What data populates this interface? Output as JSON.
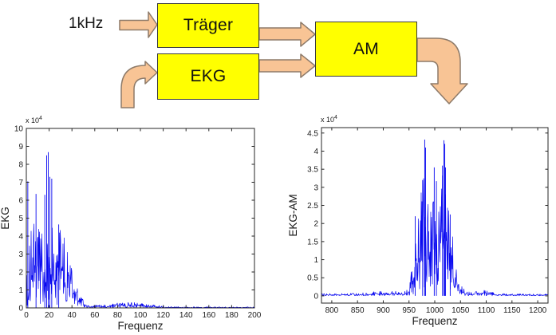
{
  "diagram": {
    "input_label": "1kHz",
    "blocks": [
      {
        "id": "traeger",
        "label": "Träger"
      },
      {
        "id": "ekg",
        "label": "EKG"
      },
      {
        "id": "am",
        "label": "AM"
      }
    ],
    "colors": {
      "block_fill": "#ffff00",
      "block_border": "#3a3a3a",
      "arrow_fill": "#f8c495",
      "arrow_border": "#8d7a69"
    }
  },
  "chart_data": [
    {
      "type": "line",
      "title": "",
      "xlabel": "Frequenz",
      "ylabel": "EKG",
      "exponent_label": "x 10^4",
      "xlim": [
        0,
        200
      ],
      "ylim": [
        0,
        10
      ],
      "xticks": [
        0,
        20,
        40,
        60,
        80,
        100,
        120,
        140,
        160,
        180,
        200
      ],
      "yticks": [
        0,
        1,
        2,
        3,
        4,
        5,
        6,
        7,
        8,
        9,
        10
      ],
      "grid": false,
      "legend": null,
      "line_color": "#0808f0",
      "description": "Noisy EKG magnitude spectrum (units x 10^4), energy concentrated 0-50 Hz, small noise bump 70-115 Hz, flat near zero above 125 Hz",
      "envelope_points": [
        [
          0,
          0.1,
          0.2
        ],
        [
          1,
          0.8,
          7.05
        ],
        [
          2,
          1.2,
          3.2
        ],
        [
          3,
          1.8,
          4.2
        ],
        [
          5,
          2.8,
          5.3
        ],
        [
          7,
          3.6,
          5.0
        ],
        [
          8,
          4.2,
          6.35
        ],
        [
          10,
          4.3,
          5.2
        ],
        [
          12,
          3.6,
          4.6
        ],
        [
          14,
          3.1,
          5.0
        ],
        [
          16,
          3.4,
          6.3
        ],
        [
          18,
          3.8,
          8.55
        ],
        [
          19,
          3.9,
          8.68
        ],
        [
          20,
          3.6,
          7.3
        ],
        [
          22,
          3.2,
          7.2
        ],
        [
          24,
          3.3,
          4.5
        ],
        [
          26,
          3.1,
          4.3
        ],
        [
          28,
          2.9,
          4.65
        ],
        [
          30,
          2.75,
          4.4
        ],
        [
          32,
          2.6,
          4.35
        ],
        [
          34,
          2.4,
          4.45
        ],
        [
          36,
          2.15,
          3.4
        ],
        [
          38,
          1.95,
          2.8
        ],
        [
          40,
          1.6,
          2.35
        ],
        [
          42,
          1.25,
          1.8
        ],
        [
          44,
          0.95,
          1.4
        ],
        [
          46,
          0.65,
          1.0
        ],
        [
          48,
          0.42,
          0.7
        ],
        [
          50,
          0.27,
          0.45
        ],
        [
          53,
          0.16,
          0.28
        ],
        [
          56,
          0.1,
          0.2
        ],
        [
          60,
          0.08,
          0.16
        ],
        [
          65,
          0.09,
          0.17
        ],
        [
          70,
          0.1,
          0.19
        ],
        [
          75,
          0.13,
          0.22
        ],
        [
          80,
          0.16,
          0.27
        ],
        [
          85,
          0.18,
          0.3
        ],
        [
          90,
          0.19,
          0.32
        ],
        [
          95,
          0.17,
          0.3
        ],
        [
          100,
          0.16,
          0.28
        ],
        [
          105,
          0.14,
          0.26
        ],
        [
          110,
          0.12,
          0.22
        ],
        [
          114,
          0.09,
          0.18
        ],
        [
          118,
          0.06,
          0.12
        ],
        [
          122,
          0.05,
          0.14
        ],
        [
          126,
          0.04,
          0.08
        ],
        [
          140,
          0.035,
          0.06
        ],
        [
          200,
          0.035,
          0.055
        ]
      ],
      "peaks": [
        [
          1.3,
          7.05
        ],
        [
          8.5,
          6.35
        ],
        [
          16.2,
          6.3
        ],
        [
          17.8,
          8.5
        ],
        [
          19.2,
          8.68
        ],
        [
          20.6,
          7.3
        ],
        [
          22.3,
          7.2
        ],
        [
          28.4,
          4.65
        ]
      ]
    },
    {
      "type": "line",
      "title": "",
      "xlabel": "Frequenz",
      "ylabel": "EKG-AM",
      "exponent_label": "x 10^4",
      "xlim": [
        780,
        1220
      ],
      "ylim": [
        0,
        4.5
      ],
      "ylim_axis": [
        -0.2,
        4.65
      ],
      "xticks": [
        800,
        850,
        900,
        950,
        1000,
        1050,
        1100,
        1150,
        1200
      ],
      "yticks": [
        0,
        0.5,
        1,
        1.5,
        2,
        2.5,
        3,
        3.5,
        4,
        4.5
      ],
      "grid": false,
      "legend": null,
      "line_color": "#0808f0",
      "description": "AM-modulated EKG spectrum centered at 1000 Hz carrier, main lobe ~950-1050 Hz with twin peak clusters ~4.3 at 981 and 1018, small sideband bumps near 905 and 1090",
      "envelope_points": [
        [
          780,
          0.035,
          0.06
        ],
        [
          855,
          0.04,
          0.07
        ],
        [
          865,
          0.055,
          0.1
        ],
        [
          880,
          0.07,
          0.12
        ],
        [
          895,
          0.09,
          0.15
        ],
        [
          905,
          0.105,
          0.17
        ],
        [
          915,
          0.1,
          0.16
        ],
        [
          925,
          0.075,
          0.13
        ],
        [
          935,
          0.055,
          0.1
        ],
        [
          945,
          0.07,
          0.14
        ],
        [
          950,
          0.12,
          0.3
        ],
        [
          955,
          0.3,
          0.8
        ],
        [
          960,
          0.7,
          1.8
        ],
        [
          964,
          1.1,
          2.25
        ],
        [
          968,
          1.45,
          2.5
        ],
        [
          972,
          1.7,
          2.9
        ],
        [
          976,
          1.9,
          3.2
        ],
        [
          979,
          2.1,
          3.6
        ],
        [
          981,
          2.2,
          4.32
        ],
        [
          983,
          2.05,
          3.1
        ],
        [
          986,
          1.9,
          2.6
        ],
        [
          990,
          1.75,
          2.55
        ],
        [
          994,
          1.65,
          2.5
        ],
        [
          997,
          1.7,
          2.9
        ],
        [
          999,
          1.8,
          3.55
        ],
        [
          1001,
          1.55,
          2.4
        ],
        [
          1003,
          1.7,
          3.17
        ],
        [
          1006,
          1.8,
          2.5
        ],
        [
          1010,
          1.9,
          2.65
        ],
        [
          1014,
          2.0,
          3.3
        ],
        [
          1017,
          2.15,
          4.3
        ],
        [
          1020,
          2.1,
          4.25
        ],
        [
          1023,
          1.95,
          3.0
        ],
        [
          1027,
          1.7,
          2.4
        ],
        [
          1031,
          1.45,
          2.25
        ],
        [
          1035,
          1.15,
          1.7
        ],
        [
          1039,
          0.8,
          1.25
        ],
        [
          1043,
          0.5,
          0.85
        ],
        [
          1047,
          0.3,
          0.5
        ],
        [
          1051,
          0.18,
          0.32
        ],
        [
          1056,
          0.1,
          0.2
        ],
        [
          1062,
          0.07,
          0.13
        ],
        [
          1070,
          0.055,
          0.1
        ],
        [
          1080,
          0.075,
          0.13
        ],
        [
          1088,
          0.1,
          0.17
        ],
        [
          1095,
          0.1,
          0.16
        ],
        [
          1103,
          0.08,
          0.13
        ],
        [
          1112,
          0.06,
          0.1
        ],
        [
          1122,
          0.045,
          0.09
        ],
        [
          1135,
          0.035,
          0.06
        ],
        [
          1220,
          0.03,
          0.05
        ]
      ],
      "peaks": [
        [
          980.5,
          4.32
        ],
        [
          982.2,
          4.1
        ],
        [
          1017.8,
          4.3
        ],
        [
          1019.5,
          4.2
        ],
        [
          999,
          3.55
        ],
        [
          1015,
          3.6
        ],
        [
          1003.2,
          3.17
        ],
        [
          976.5,
          3.2
        ],
        [
          1021,
          3.55
        ],
        [
          962,
          2.2
        ],
        [
          1030,
          2.25
        ]
      ]
    }
  ]
}
